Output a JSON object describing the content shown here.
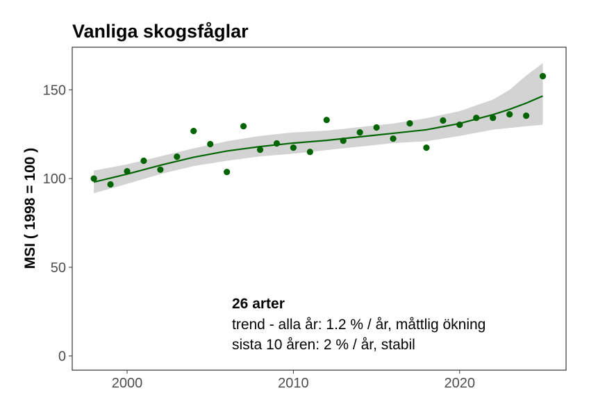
{
  "chart_data": {
    "type": "scatter",
    "title": "Vanliga skogsfåglar",
    "xlabel": "",
    "ylabel": "MSI ( 1998 = 100 )",
    "xlim": [
      1996.7,
      2026.4
    ],
    "ylim": [
      -8,
      174
    ],
    "xticks": [
      2000,
      2010,
      2020
    ],
    "yticks": [
      0,
      50,
      100,
      150
    ],
    "grid": false,
    "colors": {
      "points": "#006400",
      "trend": "#006400",
      "band": "#d3d3d3"
    },
    "points": {
      "x": [
        1998,
        1999,
        2000,
        2001,
        2002,
        2003,
        2004,
        2005,
        2006,
        2007,
        2008,
        2009,
        2010,
        2011,
        2012,
        2013,
        2014,
        2015,
        2016,
        2017,
        2018,
        2019,
        2020,
        2021,
        2022,
        2023,
        2024,
        2025
      ],
      "y": [
        100,
        96.7,
        104.1,
        110,
        105,
        112.3,
        126.8,
        119.4,
        103.7,
        129.5,
        116.2,
        119.8,
        117.4,
        115,
        133,
        121.3,
        126,
        128.8,
        122.5,
        131.1,
        117.4,
        132.7,
        130.3,
        134.2,
        134.2,
        136.2,
        135.4,
        157.7
      ]
    },
    "trend": {
      "x": [
        1998,
        2000,
        2002,
        2004,
        2006,
        2008,
        2010,
        2012,
        2014,
        2016,
        2018,
        2020,
        2022,
        2023,
        2024,
        2025
      ],
      "y": [
        98,
        102.5,
        107.5,
        112,
        115.5,
        118,
        120,
        121.5,
        123.5,
        125.5,
        127.5,
        131,
        136,
        139,
        142.5,
        146.5
      ],
      "lower": [
        91.7,
        97,
        102.5,
        107,
        110,
        112.5,
        114,
        116,
        118,
        120,
        121,
        124,
        127.5,
        128.5,
        129.5,
        130.3
      ],
      "upper": [
        104.5,
        108,
        112.5,
        117,
        121,
        124,
        126,
        127,
        129,
        131,
        134,
        138,
        144.5,
        150,
        158,
        165
      ]
    },
    "annotation": {
      "heading": "26 arter",
      "line1": "trend - alla år: 1.2 % / år, måttlig ökning",
      "line2": "sista 10 åren: 2 % / år, stabil"
    }
  }
}
